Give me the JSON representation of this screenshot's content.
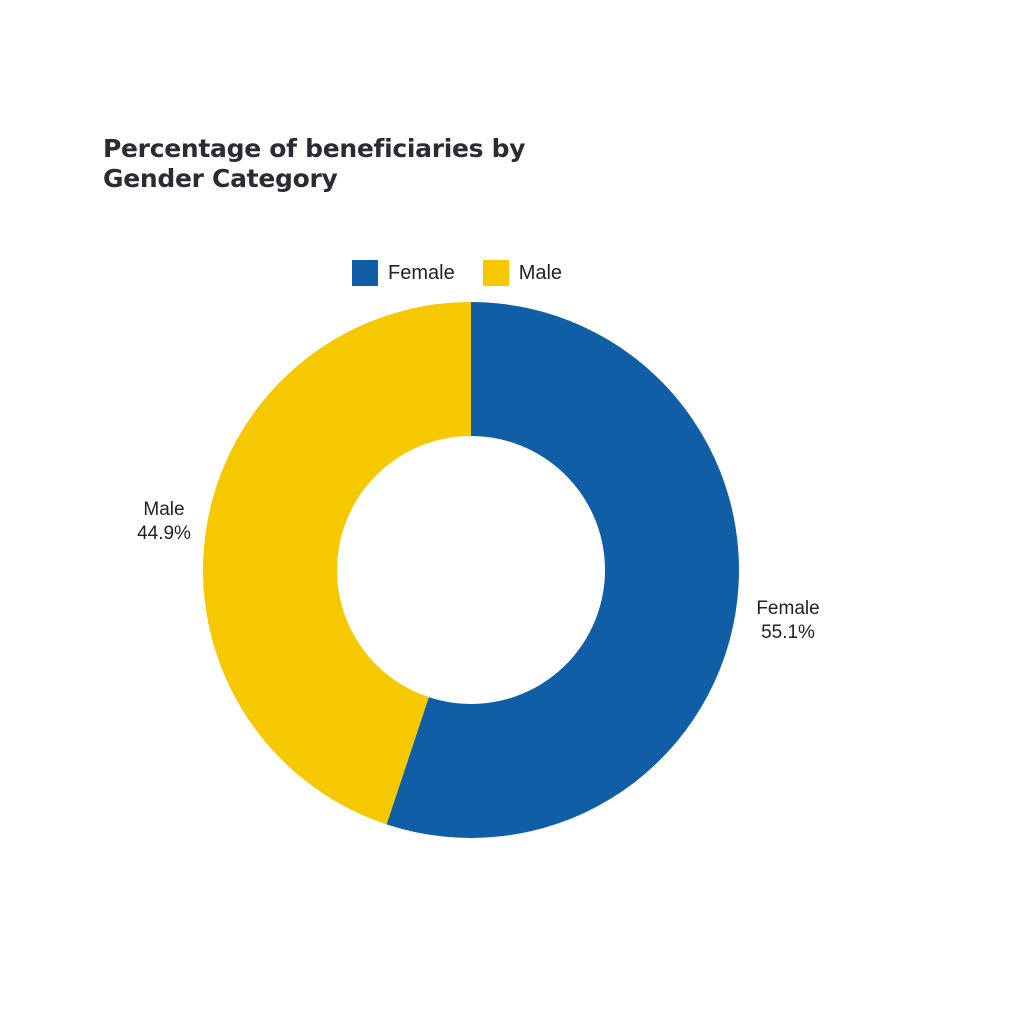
{
  "chart_data": {
    "type": "pie",
    "title_lines": [
      "Percentage of beneficiaries by",
      "Gender Category"
    ],
    "categories": [
      "Female",
      "Male"
    ],
    "values": [
      55.1,
      44.9
    ],
    "value_labels": [
      "55.1%",
      "44.9%"
    ],
    "colors": [
      "#0f5ea6",
      "#f6c800"
    ],
    "legend_position": "top",
    "donut": true
  }
}
